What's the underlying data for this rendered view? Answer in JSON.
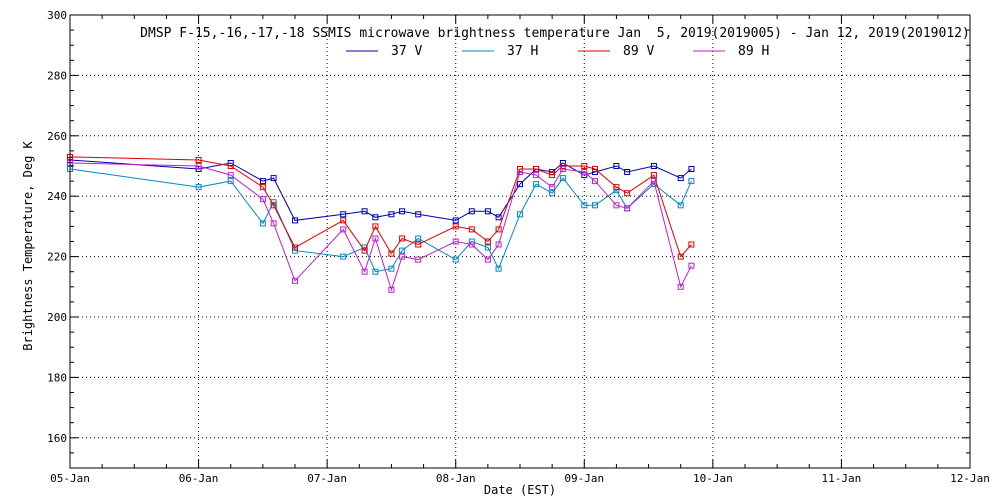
{
  "chart_data": {
    "type": "line",
    "title": "DMSP F-15,-16,-17,-18 SSMIS microwave brightness temperature Jan  5, 2019(2019005) - Jan 12, 2019(2019012)",
    "xlabel": "Date (EST)",
    "ylabel": "Brightness Temperature, Deg K",
    "xlim": [
      "05-Jan",
      "12-Jan"
    ],
    "ylim": [
      150,
      300
    ],
    "x_ticks": [
      "05-Jan",
      "06-Jan",
      "07-Jan",
      "08-Jan",
      "09-Jan",
      "10-Jan",
      "11-Jan",
      "12-Jan"
    ],
    "y_ticks": [
      160,
      180,
      200,
      220,
      240,
      260,
      280,
      300
    ],
    "grid": true,
    "legend_position": "top-center",
    "series": [
      {
        "name": "37 V",
        "color": "#0000aa",
        "points": [
          {
            "x": "05-Jan 00:00",
            "y": 252
          },
          {
            "x": "06-Jan 00:00",
            "y": 249
          },
          {
            "x": "06-Jan 06:00",
            "y": 251
          },
          {
            "x": "06-Jan 12:00",
            "y": 245
          },
          {
            "x": "06-Jan 14:00",
            "y": 246
          },
          {
            "x": "06-Jan 18:00",
            "y": 232
          },
          {
            "x": "07-Jan 03:00",
            "y": 234
          },
          {
            "x": "07-Jan 07:00",
            "y": 235
          },
          {
            "x": "07-Jan 09:00",
            "y": 233
          },
          {
            "x": "07-Jan 12:00",
            "y": 234
          },
          {
            "x": "07-Jan 14:00",
            "y": 235
          },
          {
            "x": "07-Jan 17:00",
            "y": 234
          },
          {
            "x": "08-Jan 00:00",
            "y": 232
          },
          {
            "x": "08-Jan 03:00",
            "y": 235
          },
          {
            "x": "08-Jan 06:00",
            "y": 235
          },
          {
            "x": "08-Jan 08:00",
            "y": 233
          },
          {
            "x": "08-Jan 12:00",
            "y": 244
          },
          {
            "x": "08-Jan 15:00",
            "y": 249
          },
          {
            "x": "08-Jan 18:00",
            "y": 248
          },
          {
            "x": "08-Jan 20:00",
            "y": 251
          },
          {
            "x": "09-Jan 00:00",
            "y": 247
          },
          {
            "x": "09-Jan 02:00",
            "y": 248
          },
          {
            "x": "09-Jan 06:00",
            "y": 250
          },
          {
            "x": "09-Jan 08:00",
            "y": 248
          },
          {
            "x": "09-Jan 13:00",
            "y": 250
          },
          {
            "x": "09-Jan 18:00",
            "y": 246
          },
          {
            "x": "09-Jan 20:00",
            "y": 249
          }
        ]
      },
      {
        "name": "37 H",
        "color": "#0088cc",
        "points": [
          {
            "x": "05-Jan 00:00",
            "y": 249
          },
          {
            "x": "06-Jan 00:00",
            "y": 243
          },
          {
            "x": "06-Jan 06:00",
            "y": 245
          },
          {
            "x": "06-Jan 12:00",
            "y": 231
          },
          {
            "x": "06-Jan 14:00",
            "y": 238
          },
          {
            "x": "06-Jan 18:00",
            "y": 222
          },
          {
            "x": "07-Jan 03:00",
            "y": 220
          },
          {
            "x": "07-Jan 07:00",
            "y": 223
          },
          {
            "x": "07-Jan 09:00",
            "y": 215
          },
          {
            "x": "07-Jan 12:00",
            "y": 216
          },
          {
            "x": "07-Jan 14:00",
            "y": 222
          },
          {
            "x": "07-Jan 17:00",
            "y": 226
          },
          {
            "x": "08-Jan 00:00",
            "y": 219
          },
          {
            "x": "08-Jan 03:00",
            "y": 225
          },
          {
            "x": "08-Jan 06:00",
            "y": 223
          },
          {
            "x": "08-Jan 08:00",
            "y": 216
          },
          {
            "x": "08-Jan 12:00",
            "y": 234
          },
          {
            "x": "08-Jan 15:00",
            "y": 244
          },
          {
            "x": "08-Jan 18:00",
            "y": 241
          },
          {
            "x": "08-Jan 20:00",
            "y": 246
          },
          {
            "x": "09-Jan 00:00",
            "y": 237
          },
          {
            "x": "09-Jan 02:00",
            "y": 237
          },
          {
            "x": "09-Jan 06:00",
            "y": 242
          },
          {
            "x": "09-Jan 08:00",
            "y": 236
          },
          {
            "x": "09-Jan 13:00",
            "y": 244
          },
          {
            "x": "09-Jan 18:00",
            "y": 237
          },
          {
            "x": "09-Jan 20:00",
            "y": 245
          }
        ]
      },
      {
        "name": "89 V",
        "color": "#dd0000",
        "points": [
          {
            "x": "05-Jan 00:00",
            "y": 253
          },
          {
            "x": "06-Jan 00:00",
            "y": 252
          },
          {
            "x": "06-Jan 06:00",
            "y": 250
          },
          {
            "x": "06-Jan 12:00",
            "y": 243
          },
          {
            "x": "06-Jan 14:00",
            "y": 237
          },
          {
            "x": "06-Jan 18:00",
            "y": 223
          },
          {
            "x": "07-Jan 03:00",
            "y": 232
          },
          {
            "x": "07-Jan 07:00",
            "y": 222
          },
          {
            "x": "07-Jan 09:00",
            "y": 230
          },
          {
            "x": "07-Jan 12:00",
            "y": 221
          },
          {
            "x": "07-Jan 14:00",
            "y": 226
          },
          {
            "x": "07-Jan 17:00",
            "y": 224
          },
          {
            "x": "08-Jan 00:00",
            "y": 230
          },
          {
            "x": "08-Jan 03:00",
            "y": 229
          },
          {
            "x": "08-Jan 06:00",
            "y": 225
          },
          {
            "x": "08-Jan 08:00",
            "y": 229
          },
          {
            "x": "08-Jan 12:00",
            "y": 249
          },
          {
            "x": "08-Jan 15:00",
            "y": 249
          },
          {
            "x": "08-Jan 18:00",
            "y": 247
          },
          {
            "x": "08-Jan 20:00",
            "y": 250
          },
          {
            "x": "09-Jan 00:00",
            "y": 250
          },
          {
            "x": "09-Jan 02:00",
            "y": 249
          },
          {
            "x": "09-Jan 06:00",
            "y": 243
          },
          {
            "x": "09-Jan 08:00",
            "y": 241
          },
          {
            "x": "09-Jan 13:00",
            "y": 247
          },
          {
            "x": "09-Jan 18:00",
            "y": 220
          },
          {
            "x": "09-Jan 20:00",
            "y": 224
          }
        ]
      },
      {
        "name": "89 H",
        "color": "#bb22cc",
        "points": [
          {
            "x": "05-Jan 00:00",
            "y": 251
          },
          {
            "x": "06-Jan 00:00",
            "y": 250
          },
          {
            "x": "06-Jan 06:00",
            "y": 247
          },
          {
            "x": "06-Jan 12:00",
            "y": 239
          },
          {
            "x": "06-Jan 14:00",
            "y": 231
          },
          {
            "x": "06-Jan 18:00",
            "y": 212
          },
          {
            "x": "07-Jan 03:00",
            "y": 229
          },
          {
            "x": "07-Jan 07:00",
            "y": 215
          },
          {
            "x": "07-Jan 09:00",
            "y": 226
          },
          {
            "x": "07-Jan 12:00",
            "y": 209
          },
          {
            "x": "07-Jan 14:00",
            "y": 220
          },
          {
            "x": "07-Jan 17:00",
            "y": 219
          },
          {
            "x": "08-Jan 00:00",
            "y": 225
          },
          {
            "x": "08-Jan 03:00",
            "y": 224
          },
          {
            "x": "08-Jan 06:00",
            "y": 219
          },
          {
            "x": "08-Jan 08:00",
            "y": 224
          },
          {
            "x": "08-Jan 12:00",
            "y": 248
          },
          {
            "x": "08-Jan 15:00",
            "y": 247
          },
          {
            "x": "08-Jan 18:00",
            "y": 243
          },
          {
            "x": "08-Jan 20:00",
            "y": 249
          },
          {
            "x": "09-Jan 00:00",
            "y": 248
          },
          {
            "x": "09-Jan 02:00",
            "y": 245
          },
          {
            "x": "09-Jan 06:00",
            "y": 237
          },
          {
            "x": "09-Jan 08:00",
            "y": 236
          },
          {
            "x": "09-Jan 13:00",
            "y": 245
          },
          {
            "x": "09-Jan 18:00",
            "y": 210
          },
          {
            "x": "09-Jan 20:00",
            "y": 217
          }
        ]
      }
    ]
  }
}
